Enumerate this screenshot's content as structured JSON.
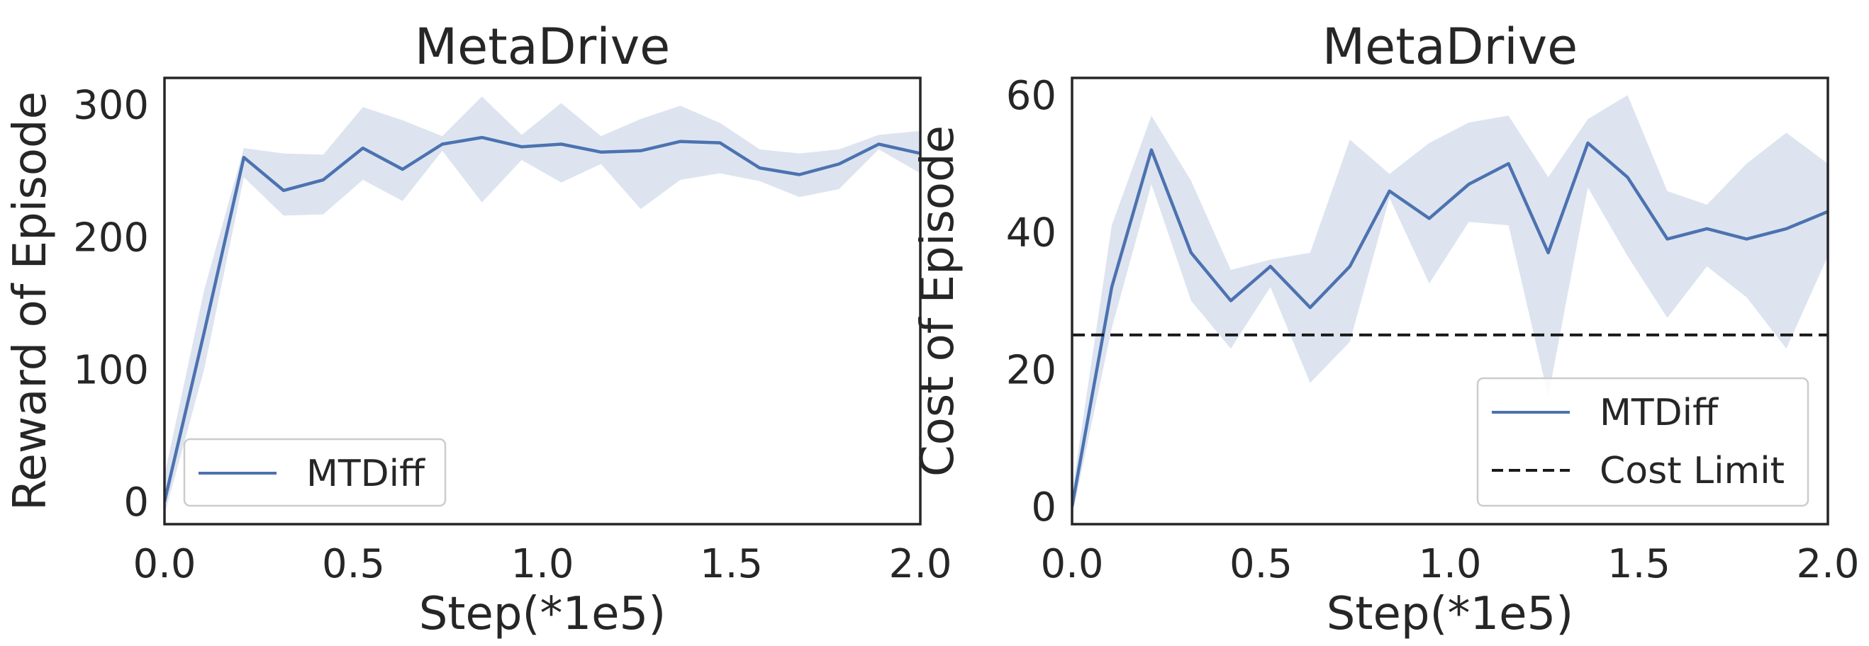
{
  "chart_data": [
    {
      "type": "line",
      "title": "MetaDrive",
      "xlabel": "Step(*1e5)",
      "ylabel": "Reward of Episode",
      "xlim": [
        0,
        2.0
      ],
      "ylim": [
        -17,
        320
      ],
      "xticks": [
        0.0,
        0.5,
        1.0,
        1.5,
        2.0
      ],
      "xtick_labels": [
        "0.0",
        "0.5",
        "1.0",
        "1.5",
        "2.0"
      ],
      "yticks": [
        0,
        100,
        200,
        300
      ],
      "ytick_labels": [
        "0",
        "100",
        "200",
        "300"
      ],
      "grid": false,
      "legend_position": "lower-left",
      "series": [
        {
          "name": "MTDiff",
          "color": "#4c72b0",
          "style": "solid",
          "x": [
            0,
            0.105,
            0.21,
            0.315,
            0.42,
            0.525,
            0.63,
            0.735,
            0.84,
            0.945,
            1.05,
            1.155,
            1.26,
            1.365,
            1.47,
            1.575,
            1.68,
            1.785,
            1.89,
            2.0
          ],
          "y": [
            0,
            128,
            260,
            235,
            243,
            267,
            251,
            270,
            275,
            268,
            270,
            264,
            265,
            272,
            271,
            252,
            247,
            255,
            270,
            263
          ],
          "band_upper": [
            20,
            160,
            267,
            263,
            262,
            298,
            288,
            276,
            306,
            277,
            301,
            276,
            289,
            299,
            286,
            266,
            263,
            266,
            277,
            280
          ],
          "band_lower": [
            -10,
            100,
            245,
            216,
            217,
            243,
            227,
            265,
            226,
            258,
            241,
            255,
            221,
            243,
            248,
            242,
            230,
            236,
            266,
            248
          ]
        }
      ]
    },
    {
      "type": "line",
      "title": "MetaDrive",
      "xlabel": "Step(*1e5)",
      "ylabel": "Cost of Episode",
      "xlim": [
        0,
        2.0
      ],
      "ylim": [
        -2.6,
        62.5
      ],
      "xticks": [
        0.0,
        0.5,
        1.0,
        1.5,
        2.0
      ],
      "xtick_labels": [
        "0.0",
        "0.5",
        "1.0",
        "1.5",
        "2.0"
      ],
      "yticks": [
        0,
        20,
        40,
        60
      ],
      "ytick_labels": [
        "0",
        "20",
        "40",
        "60"
      ],
      "grid": false,
      "legend_position": "lower-right",
      "series": [
        {
          "name": "MTDiff",
          "color": "#4c72b0",
          "style": "solid",
          "x": [
            0,
            0.105,
            0.21,
            0.315,
            0.42,
            0.525,
            0.63,
            0.735,
            0.84,
            0.945,
            1.05,
            1.155,
            1.26,
            1.365,
            1.47,
            1.575,
            1.68,
            1.785,
            1.89,
            2.0
          ],
          "y": [
            0,
            32,
            52,
            37,
            30,
            35,
            29,
            35,
            46,
            42,
            47,
            50,
            37,
            53,
            48,
            39,
            40.5,
            39,
            40.5,
            43
          ],
          "band_upper": [
            2,
            41,
            57,
            47.5,
            34.5,
            36,
            37,
            53.5,
            48.5,
            53,
            56,
            57,
            48,
            56.5,
            60,
            46,
            44,
            50,
            54.5,
            50
          ],
          "band_lower": [
            -1.5,
            26,
            47,
            30,
            23,
            32,
            18,
            24,
            45,
            32.5,
            41.5,
            41,
            16,
            46.5,
            36.5,
            27.5,
            35,
            30.5,
            23,
            36.5
          ]
        },
        {
          "name": "Cost Limit",
          "color": "#1a1a1a",
          "style": "dashed",
          "x": [
            0,
            2.0
          ],
          "y": [
            25,
            25
          ]
        }
      ]
    }
  ]
}
